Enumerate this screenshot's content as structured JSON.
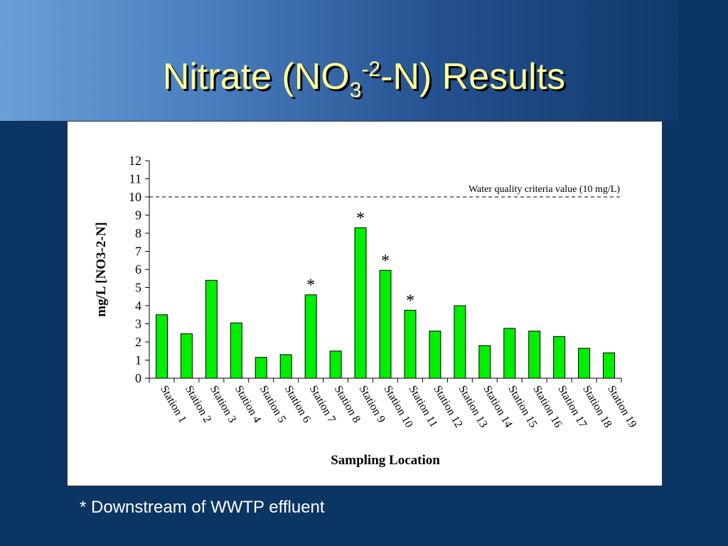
{
  "title": {
    "main_before": "Nitrate (NO",
    "sub": "3",
    "sup": "-2",
    "main_after": "-N) Results"
  },
  "footnote": "* Downstream of WWTP effluent",
  "chart_data": {
    "type": "bar",
    "title": "",
    "xlabel": "Sampling Location",
    "ylabel": "mg/L [NO3-2-N]",
    "ylim": [
      0,
      12
    ],
    "yticks": [
      0,
      1,
      2,
      3,
      4,
      5,
      6,
      7,
      8,
      9,
      10,
      11,
      12
    ],
    "categories": [
      "Station 1",
      "Station 2",
      "Station 3",
      "Station 4",
      "Station 5",
      "Station 6",
      "Station 7",
      "Station 8",
      "Station 9",
      "Station 10",
      "Station 11",
      "Station 12",
      "Station 13",
      "Station 14",
      "Station 15",
      "Station 16",
      "Station 17",
      "Station 18",
      "Station 19"
    ],
    "values": [
      3.5,
      2.45,
      5.4,
      3.05,
      1.15,
      1.3,
      4.6,
      1.5,
      8.3,
      5.95,
      3.75,
      2.6,
      4.0,
      1.8,
      2.75,
      2.6,
      2.3,
      1.65,
      1.4
    ],
    "markers": [
      "",
      "",
      "",
      "",
      "",
      "",
      "*",
      "",
      "*",
      "*",
      "*",
      "",
      "",
      "",
      "",
      "",
      "",
      "",
      ""
    ],
    "bar_color": "#00ee00",
    "reference_line": {
      "value": 10,
      "label": "Water quality criteria value (10 mg/L)"
    },
    "grid": false,
    "legend": "none"
  }
}
